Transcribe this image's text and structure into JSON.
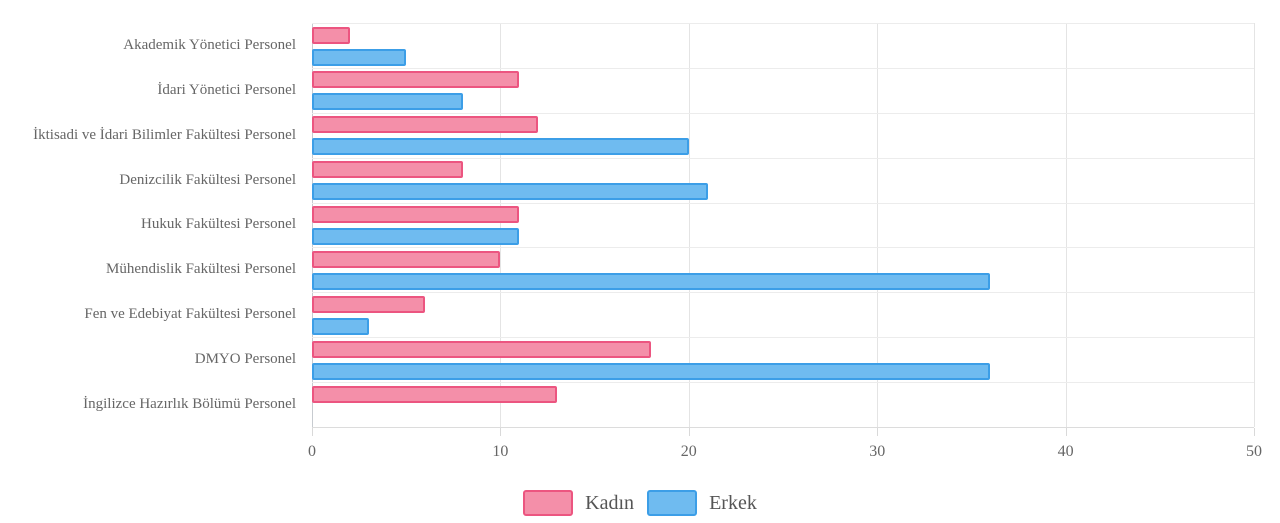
{
  "chart_data": {
    "type": "bar",
    "orientation": "horizontal",
    "categories": [
      "Akademik Yönetici Personel",
      "İdari Yönetici Personel",
      "İktisadi ve İdari Bilimler Fakültesi Personel",
      "Denizcilik Fakültesi Personel",
      "Hukuk Fakültesi Personel",
      "Mühendislik Fakültesi Personel",
      "Fen ve Edebiyat Fakültesi Personel",
      "DMYO Personel",
      "İngilizce Hazırlık Bölümü Personel"
    ],
    "series": [
      {
        "name": "Kadın",
        "key": "kadin",
        "values": [
          2,
          11,
          12,
          8,
          11,
          10,
          6,
          18,
          13
        ],
        "fill": "#F48FA9",
        "border": "#EC5580"
      },
      {
        "name": "Erkek",
        "key": "erkek",
        "values": [
          5,
          8,
          20,
          21,
          11,
          36,
          3,
          36,
          0
        ],
        "fill": "#6FBBF0",
        "border": "#3C9EE7"
      }
    ],
    "xlim": [
      0,
      50
    ],
    "xticks": [
      0,
      10,
      20,
      30,
      40,
      50
    ],
    "grid": true,
    "legend_position": "bottom"
  }
}
